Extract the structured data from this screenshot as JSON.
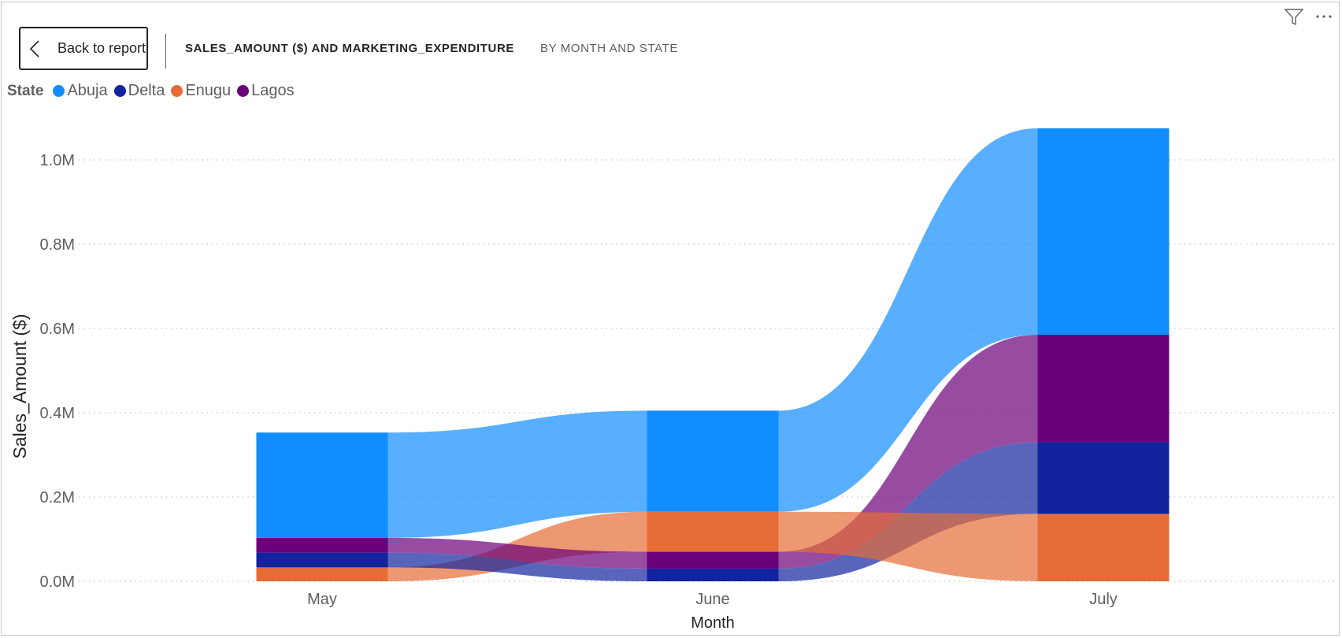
{
  "header": {
    "back_label": "Back to report",
    "title": "SALES_AMOUNT ($) AND MARKETING_EXPENDITURE",
    "subtitle": "BY MONTH AND STATE",
    "icons": [
      "filter-icon",
      "more-options-icon"
    ]
  },
  "legend": {
    "title": "State",
    "items": [
      {
        "label": "Abuja",
        "color": "#118DFF"
      },
      {
        "label": "Delta",
        "color": "#12239E"
      },
      {
        "label": "Enugu",
        "color": "#E66C37"
      },
      {
        "label": "Lagos",
        "color": "#6B007B"
      }
    ]
  },
  "chart_data": {
    "type": "ribbon",
    "title": "SALES_AMOUNT ($) AND MARKETING_EXPENDITURE BY MONTH AND STATE",
    "xlabel": "Month",
    "ylabel": "Sales_Amount ($)",
    "categories": [
      "May",
      "June",
      "July"
    ],
    "ylim": [
      0,
      1.0
    ],
    "yticks": [
      "0.0M",
      "0.2M",
      "0.4M",
      "0.6M",
      "0.8M",
      "1.0M"
    ],
    "ytick_values": [
      0,
      0.2,
      0.4,
      0.6,
      0.8,
      1.0
    ],
    "grid": true,
    "legend_position": "top-left",
    "units": "M",
    "series": [
      {
        "name": "Abuja",
        "values": [
          0.25,
          0.24,
          0.49
        ]
      },
      {
        "name": "Delta",
        "values": [
          0.035,
          0.03,
          0.17
        ]
      },
      {
        "name": "Enugu",
        "values": [
          0.033,
          0.095,
          0.16
        ]
      },
      {
        "name": "Lagos",
        "values": [
          0.035,
          0.04,
          0.255
        ]
      }
    ],
    "stack_order": [
      [
        "Enugu",
        "Delta",
        "Lagos",
        "Abuja"
      ],
      [
        "Delta",
        "Lagos",
        "Enugu",
        "Abuja"
      ],
      [
        "Enugu",
        "Delta",
        "Lagos",
        "Abuja"
      ]
    ]
  }
}
